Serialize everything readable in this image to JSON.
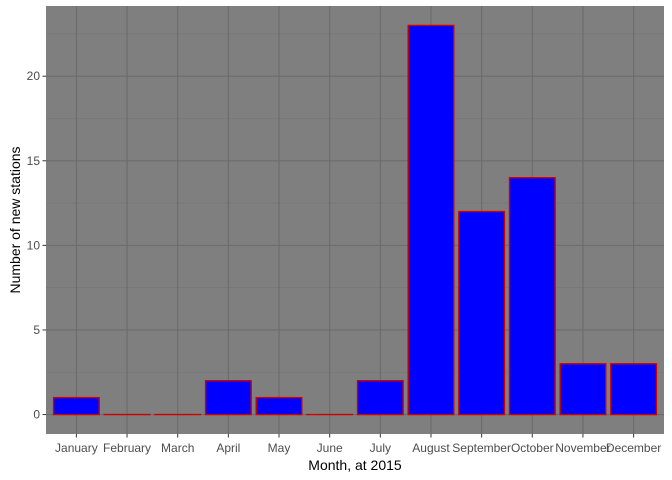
{
  "chart_data": {
    "type": "bar",
    "title": "",
    "xlabel": "Month, at 2015",
    "ylabel": "Number of new stations",
    "categories": [
      "January",
      "February",
      "March",
      "April",
      "May",
      "June",
      "July",
      "August",
      "September",
      "October",
      "November",
      "December"
    ],
    "values": [
      1,
      0,
      0,
      2,
      1,
      0,
      2,
      23,
      12,
      14,
      3,
      3
    ],
    "ylim": [
      -1.15,
      24.15
    ],
    "yticks": [
      0,
      5,
      10,
      15,
      20
    ],
    "ytick_labels": [
      "0",
      "5",
      "10",
      "15",
      "20"
    ],
    "grid": true,
    "legend": "none",
    "colors": {
      "panel_background": "#7f7f7f",
      "grid_major": "#6b6b6b",
      "grid_minor": "#757575",
      "bar_fill": "#0000ff",
      "bar_outline": "#cc0000"
    }
  }
}
